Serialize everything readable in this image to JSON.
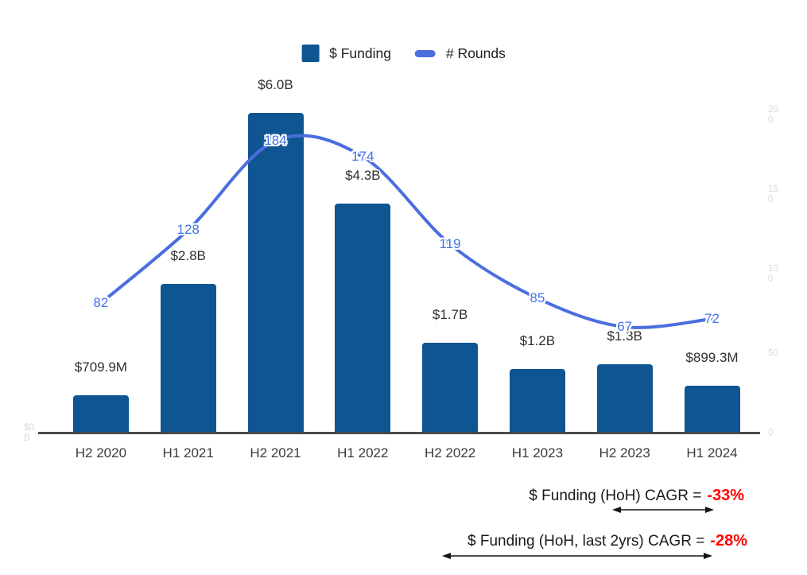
{
  "legend": {
    "funding_label": "$ Funding",
    "rounds_label": "# Rounds"
  },
  "chart_data": {
    "type": "bar",
    "categories": [
      "H2 2020",
      "H1 2021",
      "H2 2021",
      "H1 2022",
      "H2 2022",
      "H1 2023",
      "H2 2023",
      "H1 2024"
    ],
    "series": [
      {
        "name": "$ Funding",
        "type": "bar",
        "axis": "left",
        "unit": "USD billions",
        "values": [
          0.7099,
          2.8,
          6.0,
          4.3,
          1.7,
          1.2,
          1.3,
          0.8993
        ],
        "labels": [
          "$709.9M",
          "$2.8B",
          "$6.0B",
          "$4.3B",
          "$1.7B",
          "$1.2B",
          "$1.3B",
          "$899.3M"
        ],
        "color": "#0f5591"
      },
      {
        "name": "# Rounds",
        "type": "line",
        "axis": "right",
        "values": [
          82,
          128,
          184,
          174,
          119,
          85,
          67,
          72
        ],
        "color": "#4b6edf",
        "label_color": "#4273e4"
      }
    ],
    "right_axis": {
      "ticks": [
        200,
        150,
        100,
        50,
        0
      ],
      "tick_label_lines": [
        [
          "20",
          "0"
        ],
        [
          "15",
          "0"
        ],
        [
          "10",
          "0"
        ],
        [
          "50"
        ],
        [
          "0"
        ]
      ]
    },
    "left_axis": {
      "tick_label_lines": [
        [
          "$0.",
          "B"
        ]
      ]
    },
    "legend_position": "top",
    "grid": false,
    "ylim_right": [
      0,
      200
    ]
  },
  "annotations": [
    {
      "label": "$ Funding (HoH) CAGR =",
      "value": "-33%"
    },
    {
      "label": "$ Funding (HoH, last 2yrs) CAGR =",
      "value": "-28%"
    }
  ],
  "colors": {
    "bar": "#0f5591",
    "line": "#4b6edf",
    "rounds_label": "#4273e4",
    "negative_value": "#ff0000",
    "axis_line": "#4a4a4a",
    "faint_axis_label": "#d9d9d9"
  }
}
